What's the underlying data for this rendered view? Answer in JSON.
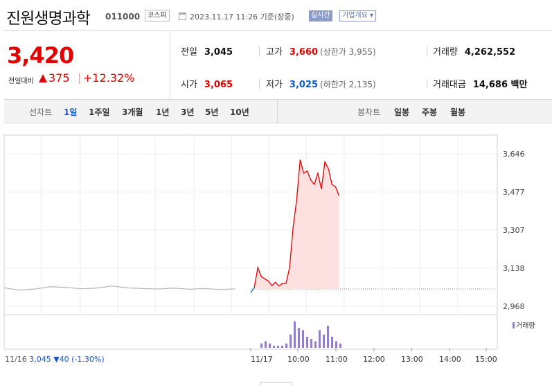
{
  "header": {
    "name": "진원생명과학",
    "code": "011000",
    "market": "코스피",
    "date": "2023.11.17 11:26 기준(장중)",
    "realtime": "실시간",
    "overview": "기업개요 ▾"
  },
  "price": {
    "current": "3,420",
    "vs_label": "전일대비",
    "change": "375",
    "change_pct": "+12.32%"
  },
  "stats": {
    "prev_label": "전일",
    "prev": "3,045",
    "high_label": "고가",
    "high": "3,660",
    "high_limit": "(상한가 3,955)",
    "volume_label": "거래량",
    "volume": "4,262,552",
    "open_label": "시가",
    "open": "3,065",
    "low_label": "저가",
    "low": "3,025",
    "low_limit": "(하한가 2,135)",
    "amount_label": "거래대금",
    "amount": "14,686 백만"
  },
  "periods": {
    "line_title": "선차트",
    "line_items": [
      "1일",
      "1주일",
      "3개월",
      "1년",
      "3년",
      "5년",
      "10년"
    ],
    "selected_line": "1일",
    "candle_title": "봉차트",
    "candle_items": [
      "일봉",
      "주봉",
      "월봉"
    ]
  },
  "colors": {
    "up": "#e30000",
    "down": "#0c5cc6",
    "volume": "#9180c4",
    "fill": "#fde1e1"
  },
  "chart_data": {
    "type": "area",
    "title": "",
    "y_ticks": [
      "3,646",
      "3,477",
      "3,307",
      "3,138",
      "2,968"
    ],
    "y_tick_values": [
      3646,
      3477,
      3307,
      3138,
      2968
    ],
    "x_ticks": [
      "11/16",
      "11/17",
      "10:00",
      "11:00",
      "12:00",
      "13:00",
      "14:00",
      "15:00"
    ],
    "prev_close": 3045,
    "volume_legend": "거래량",
    "prev_day": {
      "date": "11/16",
      "close": "3,045",
      "change": "▼40",
      "pct": "(-1.30%)"
    },
    "series": [
      {
        "name": "11/16",
        "points": [
          [
            0,
            3050
          ],
          [
            1,
            3040
          ],
          [
            2,
            3045
          ],
          [
            3,
            3055
          ],
          [
            4,
            3052
          ],
          [
            5,
            3046
          ],
          [
            6,
            3049
          ],
          [
            7,
            3058
          ],
          [
            8,
            3050
          ],
          [
            9,
            3047
          ],
          [
            10,
            3045
          ],
          [
            11,
            3049
          ],
          [
            12,
            3044
          ],
          [
            13,
            3047
          ],
          [
            14,
            3043
          ],
          [
            15,
            3045
          ]
        ]
      },
      {
        "name": "11/17",
        "points": [
          [
            16,
            3030
          ],
          [
            16.5,
            3050
          ],
          [
            17,
            3140
          ],
          [
            17.5,
            3100
          ],
          [
            18,
            3090
          ],
          [
            18.5,
            3080
          ],
          [
            19,
            3060
          ],
          [
            19.5,
            3075
          ],
          [
            20,
            3058
          ],
          [
            20.5,
            3070
          ],
          [
            21,
            3070
          ],
          [
            21.5,
            3140
          ],
          [
            22,
            3320
          ],
          [
            22.5,
            3440
          ],
          [
            23,
            3620
          ],
          [
            23.5,
            3560
          ],
          [
            24,
            3570
          ],
          [
            24.5,
            3530
          ],
          [
            25,
            3510
          ],
          [
            25.5,
            3560
          ],
          [
            26,
            3490
          ],
          [
            26.5,
            3610
          ],
          [
            27,
            3580
          ],
          [
            27.5,
            3510
          ],
          [
            28,
            3500
          ],
          [
            28.5,
            3460
          ]
        ]
      }
    ],
    "volume": [
      0,
      0,
      0,
      0,
      0,
      0,
      0,
      0,
      0,
      0,
      0,
      0,
      0,
      0,
      0,
      0,
      2,
      3,
      2,
      1,
      1,
      1,
      2,
      6,
      12,
      9,
      8,
      5,
      4,
      3,
      8,
      6,
      10,
      5,
      3,
      2
    ]
  }
}
